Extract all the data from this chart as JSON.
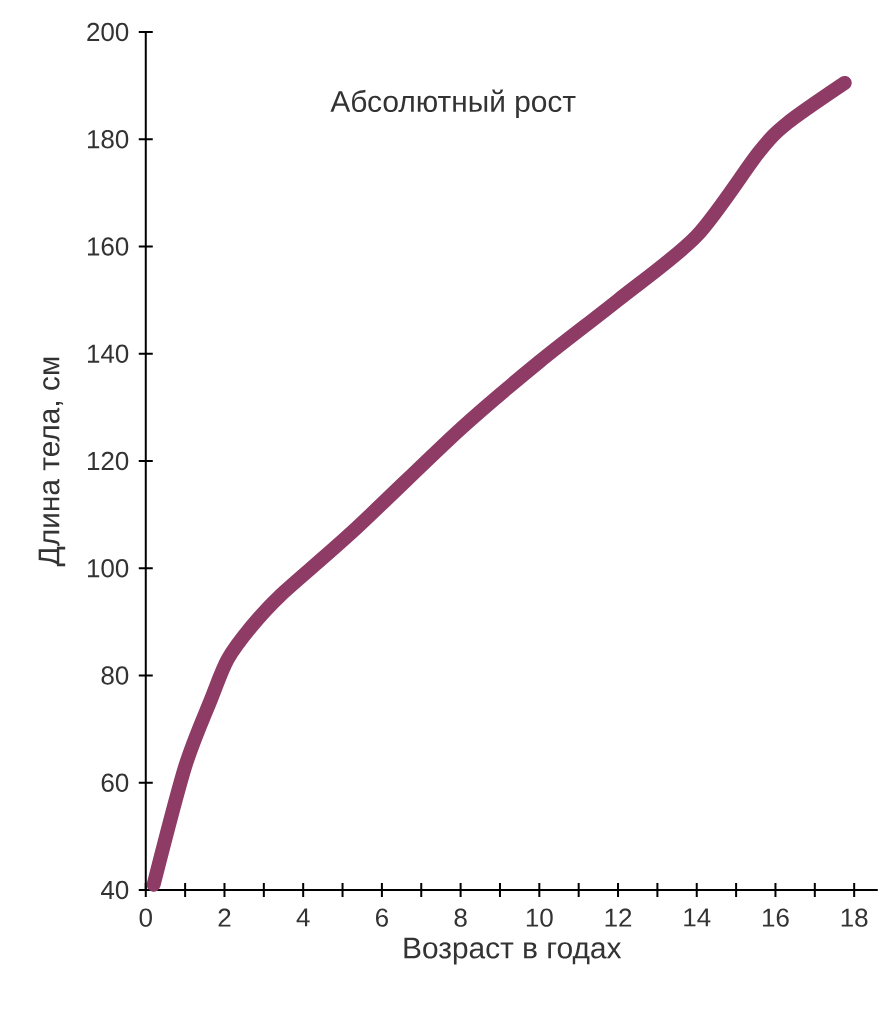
{
  "chart_data": {
    "type": "line",
    "title": "Абсолютный рост",
    "xlabel": "Возраст в годах",
    "ylabel": "Длина тела, см",
    "x": [
      0.2,
      1,
      1.66,
      2.08,
      2.67,
      3.43,
      5.28,
      8,
      10,
      12,
      14,
      15.57,
      16.3,
      17.76
    ],
    "values": [
      41,
      63,
      75.6,
      83,
      89,
      95,
      107,
      126,
      138.5,
      150,
      162,
      177.5,
      183,
      190.5
    ],
    "color": "#8e3b66",
    "line_style": "solid",
    "xlim": [
      0,
      18.6
    ],
    "ylim": [
      40,
      200
    ],
    "xticks": [
      0,
      {
        "value": 1,
        "label": null
      },
      2,
      {
        "value": 3,
        "label": null
      },
      4,
      {
        "value": 5,
        "label": null
      },
      6,
      {
        "value": 7,
        "label": null
      },
      8,
      {
        "value": 9,
        "label": null
      },
      10,
      {
        "value": 11,
        "label": null
      },
      12,
      {
        "value": 13,
        "label": null
      },
      14,
      {
        "value": 15,
        "label": null
      },
      16,
      {
        "value": 17,
        "label": null
      },
      18
    ],
    "yticks": [
      40,
      60,
      80,
      100,
      120,
      140,
      160,
      180,
      200
    ]
  }
}
